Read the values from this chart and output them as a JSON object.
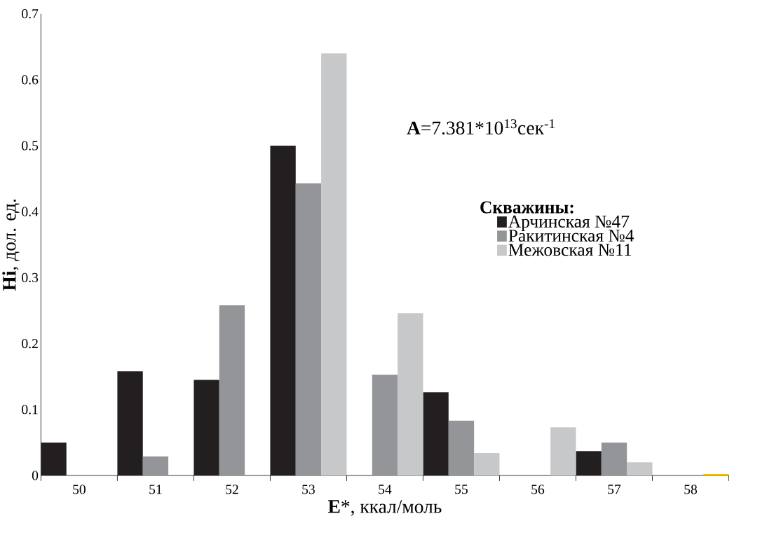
{
  "chart_data": {
    "type": "bar",
    "xlabel": "**E***, ккал/моль",
    "ylabel": "**Hi**, дол. ед.",
    "legend_title": "Скважины:",
    "categories": [
      "50",
      "51",
      "52",
      "53",
      "54",
      "55",
      "56",
      "57",
      "58"
    ],
    "series": [
      {
        "name": "Арчинская №47",
        "color": "#231f20",
        "values": [
          0.05,
          0.158,
          0.145,
          0.5,
          0,
          0.126,
          0,
          0.037,
          0
        ]
      },
      {
        "name": "Ракитинская №4",
        "color": "#939598",
        "values": [
          0,
          0.029,
          0.258,
          0.443,
          0.153,
          0.083,
          0,
          0.05,
          0
        ]
      },
      {
        "name": "Межовская №11",
        "color": "#c7c8ca",
        "colors": [
          "#c7c8ca",
          "#c7c8ca",
          "#c7c8ca",
          "#c7c8ca",
          "#c7c8ca",
          "#c7c8ca",
          "#c7c8ca",
          "#c7c8ca",
          "#f2c200"
        ],
        "values": [
          0,
          0,
          0,
          0.64,
          0.246,
          0.034,
          0.073,
          0.02,
          0.002
        ]
      }
    ],
    "ylim": [
      0,
      0.7
    ],
    "yticks": [
      0,
      0.1,
      0.2,
      0.3,
      0.4,
      0.5,
      0.6,
      0.7
    ],
    "annotations": [
      "**A**=7.381*10$^{13}$сек$^{-1}$"
    ],
    "legend": "right",
    "grid": false
  }
}
